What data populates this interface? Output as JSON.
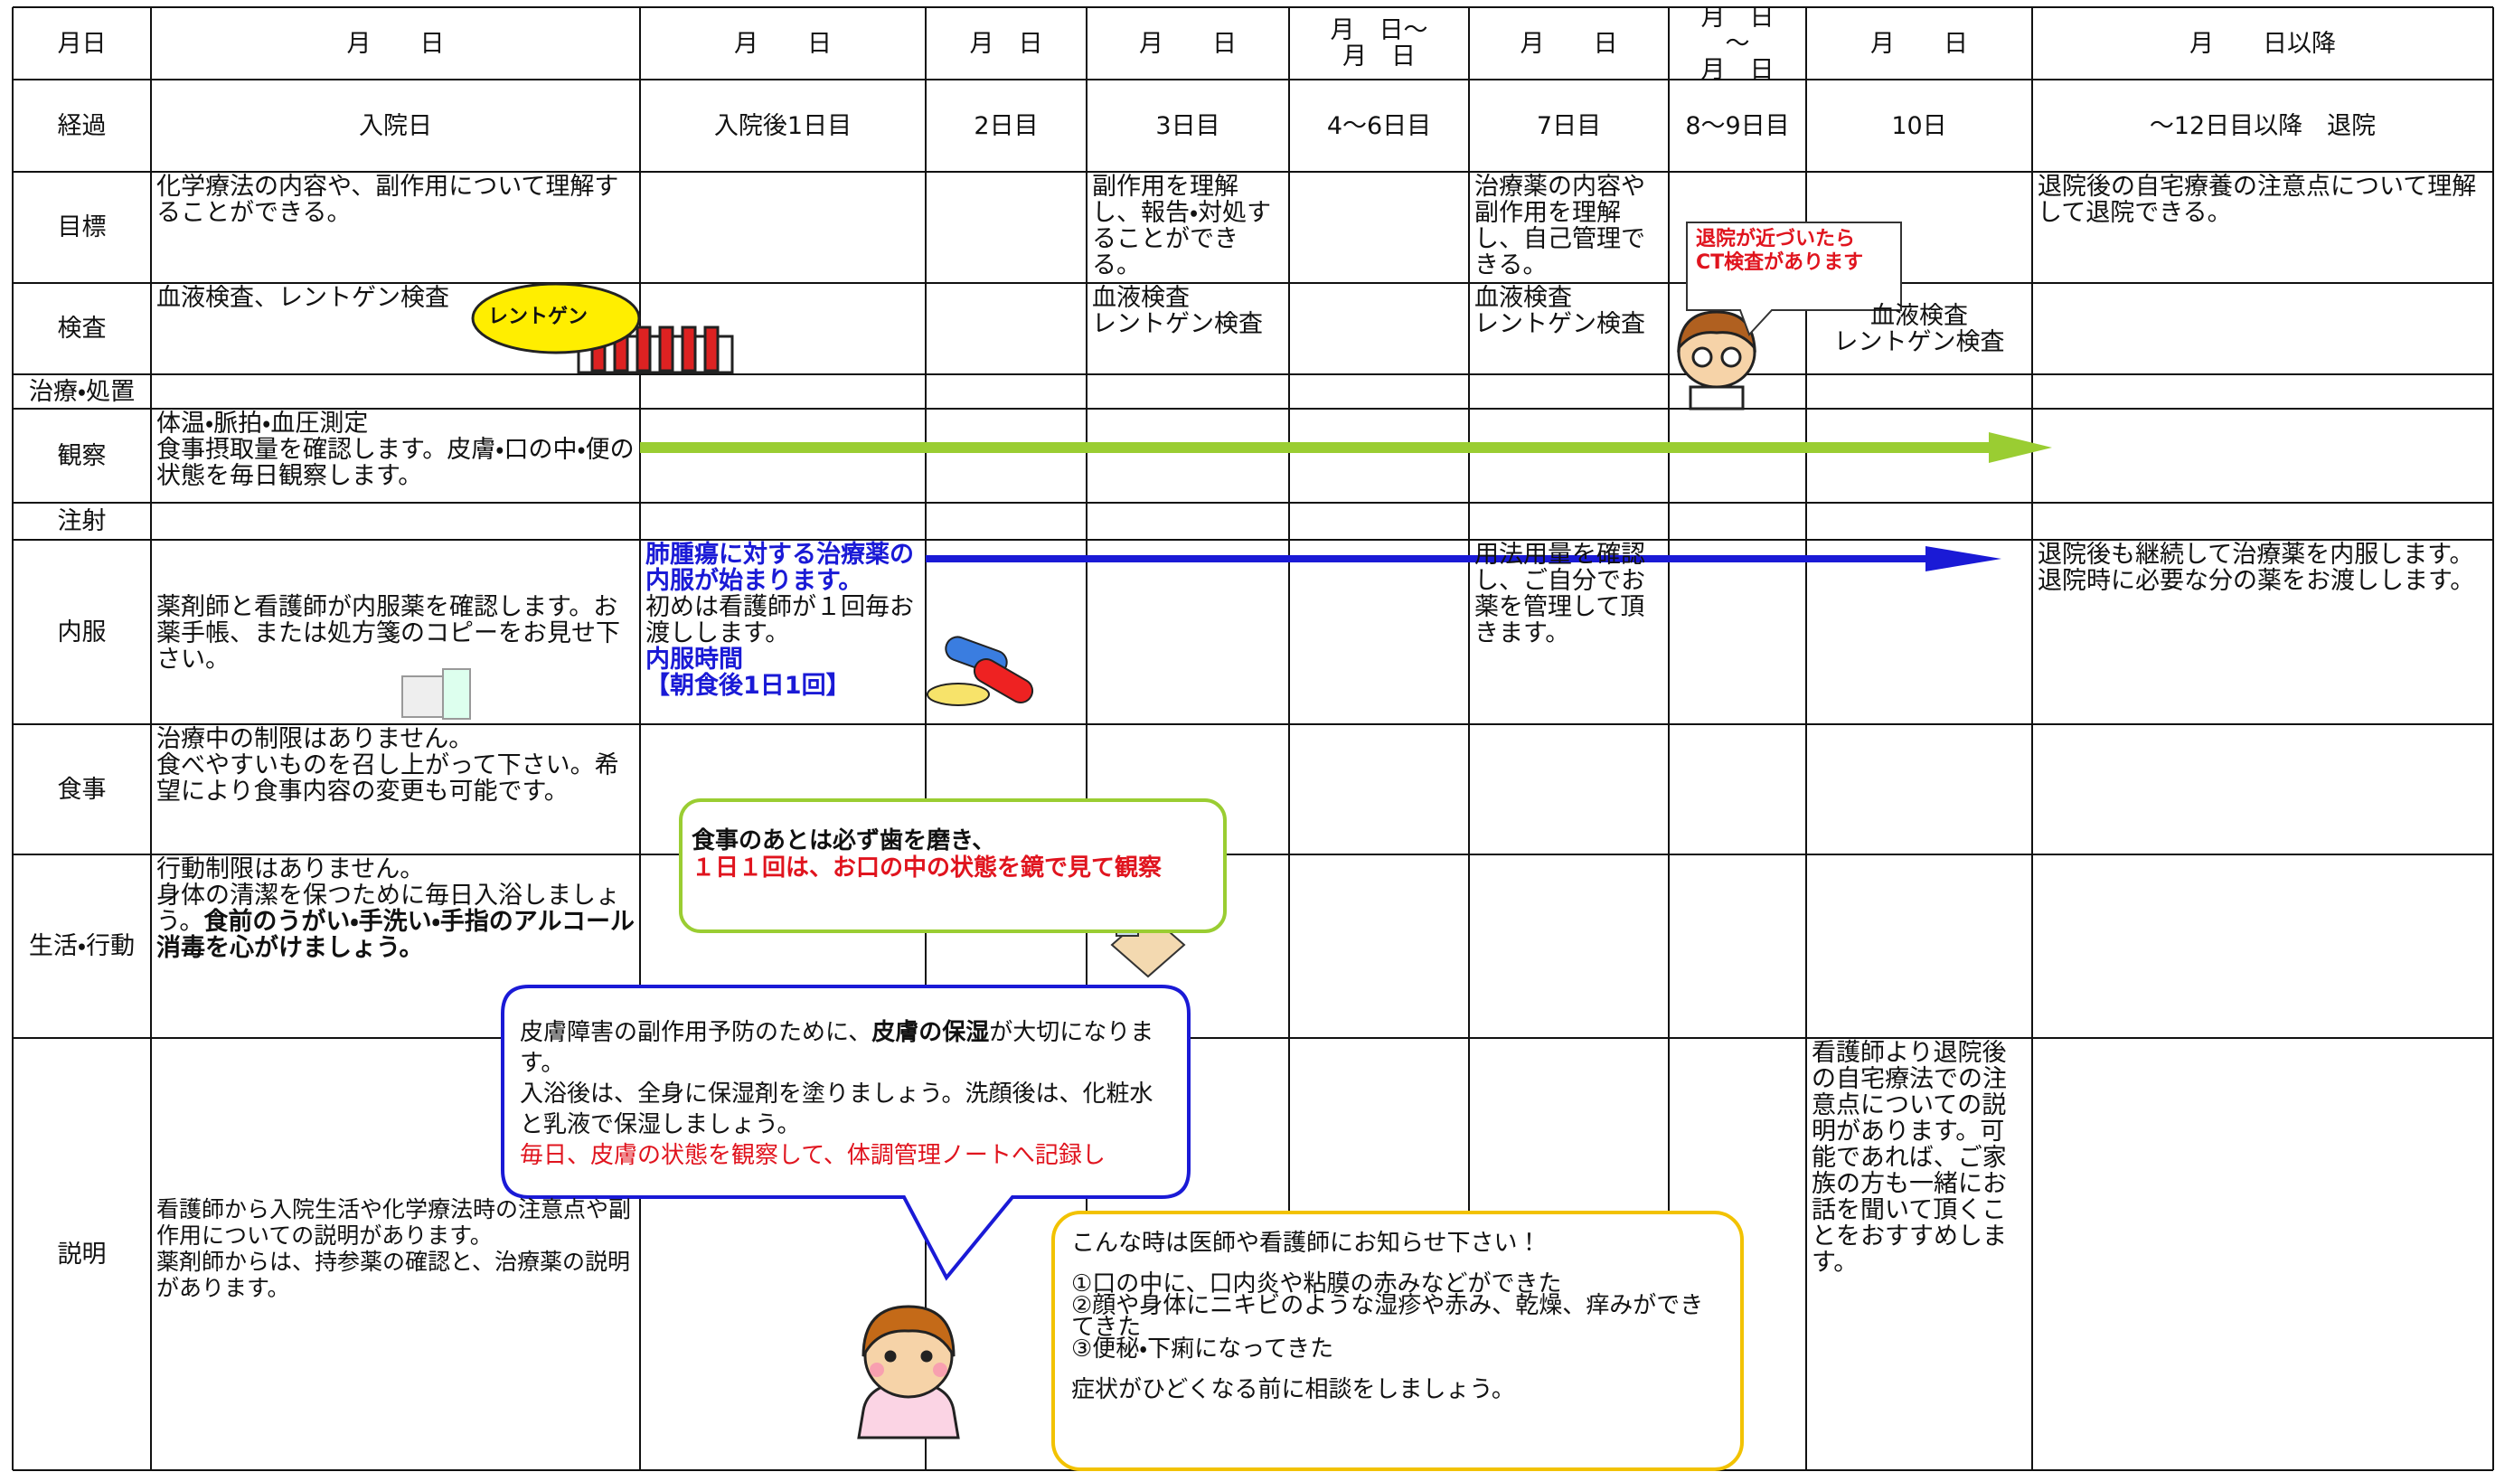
{
  "header": {
    "label": "月日",
    "cells": [
      "月　　日",
      "月　　日",
      "月　日",
      "月　　日",
      "月　日～\n月　日",
      "月　　日",
      "月　日\n～\n月　日",
      "月　　日",
      "月　　日以降"
    ]
  },
  "rows": [
    {
      "label": "経過",
      "cells": [
        "入院日",
        "入院後1日目",
        "2日目",
        "3日目",
        "4～6日目",
        "7日目",
        "8～9日目",
        "10日",
        "～12日目以降　退院"
      ]
    },
    {
      "label": "目標",
      "cells": [
        "化学療法の内容や、副作用について理解することができる。",
        null,
        null,
        "副作用を理解し、報告・対処することができる。",
        null,
        "治療薬の内容や副作用を理解し、自己管理できる。",
        null,
        null,
        "退院後の自宅療養の注意点について理解して退院できる。"
      ]
    },
    {
      "label": "検査",
      "cells": [
        "血液検査、レントゲン検査",
        null,
        null,
        "血液検査\nレントゲン検査",
        null,
        "血液検査\nレントゲン検査",
        null,
        "血液検査\nレントゲン検査",
        null
      ]
    },
    {
      "label": "治療・処置",
      "cells": [
        null,
        null,
        null,
        null,
        null,
        null,
        null,
        null,
        null
      ]
    },
    {
      "label": "観察",
      "cells": [
        "体温・脈拍・血圧測定\n食事摂取量を確認します。皮膚・口の中・便の状態を毎日観察します。",
        null,
        null,
        null,
        null,
        null,
        null,
        null,
        null
      ]
    },
    {
      "label": "注射",
      "cells": [
        null,
        null,
        null,
        null,
        null,
        null,
        null,
        null,
        null
      ]
    },
    {
      "label": "内服",
      "cells": [
        "薬剤師と看護師が内服薬を確認します。お薬手帳、または処方箋のコピーをお見せ下さい。",
        [
          {
            "text": "肺腫瘍に対する治療薬の内服が始まります。",
            "color": "#1a1ad6",
            "bold": true
          },
          {
            "text": "\n初めは看護師が１回毎お渡しします。"
          },
          {
            "text": "\n内服時間\n【朝食後1日1回】",
            "color": "#1a1ad6",
            "bold": true
          }
        ],
        null,
        null,
        null,
        "用法用量を確認し、ご自分でお薬を管理して頂きます。",
        null,
        null,
        "退院後も継続して治療薬を内服します。退院時に必要な分の薬をお渡しします。"
      ]
    },
    {
      "label": "食事",
      "cells": [
        "治療中の制限はありません。\n食べやすいものを召し上がって下さい。希望により食事内容の変更も可能です。",
        null,
        null,
        null,
        null,
        null,
        null,
        null,
        null
      ]
    },
    {
      "label": "生活・行動",
      "cells": [
        [
          {
            "text": "行動制限はありません。\n身体の清潔を保つために毎日入浴しましょう。"
          },
          {
            "text": "食前のうがい・手洗い・手指のアルコール消毒を心がけましょう。",
            "bold": true
          }
        ],
        null,
        null,
        null,
        null,
        null,
        null,
        null,
        null
      ]
    },
    {
      "label": "説明",
      "cells": [
        "看護師から入院生活や化学療法時の注意点や副作用についての説明があります。\n薬剤師からは、持参薬の確認と、治療薬の説明があります。",
        null,
        null,
        null,
        null,
        null,
        null,
        "看護師より退院後の自宅療法での注意点についての説明があります。可能であれば、ご家族の方も一緒にお話を聞いて頂くことをおすすめします。",
        null
      ]
    }
  ],
  "callouts": {
    "xray_label": "レントゲン",
    "doctor_bubble": "退院が近づいたら\nCT検査があります",
    "oral_care": [
      {
        "text": "食事のあとは必ず歯を磨き、"
      },
      {
        "text": "\n１日１回は、お口の中の状態を鏡で見て観察",
        "color": "#e0141e"
      }
    ],
    "skin_care": [
      {
        "text": "皮膚障害の副作用予防のために、"
      },
      {
        "text": "皮膚の保湿",
        "bold": true
      },
      {
        "text": "が大切になります。\n入浴後は、全身に保湿剤を塗りましょう。洗顔後は、化粧水と乳液で保湿しましょう。\n"
      },
      {
        "text": "毎日、皮膚の状態を観察して、体調管理ノートへ記録し",
        "color": "#e0141e"
      }
    ],
    "contact_box": [
      "こんな時は医師や看護師にお知らせ下さい！",
      "①口の中に、口内炎や粘膜の赤みなどができた\n②顔や身体にニキビのような湿疹や赤み、乾燥、痒みができてきた\n③便秘・下痢になってきた",
      "症状がひどくなる前に相談をしましょう。"
    ]
  }
}
